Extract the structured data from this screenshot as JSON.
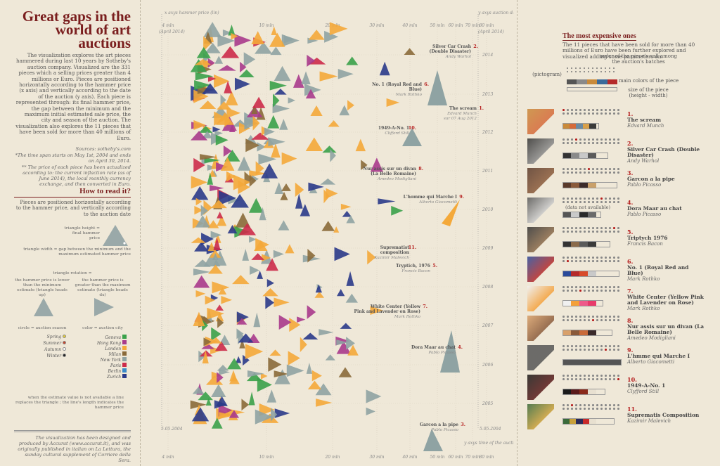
{
  "left": {
    "title": "Great gaps in the world of art auctions",
    "intro": "The visualization explores the art pieces hammered during last 10 years by Sotheby's auction company. Visualized are the 331 pieces which a selling prices greater than 4 millions or Euro. Pieces are positioned horizontally according to the hammer price (x axis) and vertically according to the date of the auction (y axis). Each piece is represented through: its final hammer price, the gap between the minimum and the maximum initial estimated sale price, the city and season of the auction. The visualization also explores the 11 pieces that have been sold for more than 40 millions of Euro.",
    "sources": "Sources: sotheby's.com",
    "note1": "*The time span starts on May 1st, 2004 and ends on April 30, 2014.",
    "note2": "** The price of each piece has been actualized according to: the current inflaction rate (as of June 2014), the local monthly currency exchange, and then converted in Euro.",
    "howto_title": "How to read it?",
    "howto_text": "Pieces are positioned horizontally according to the hammer price, and vertically according to the auction date",
    "triangle_height": "triangle height = final hammer price",
    "triangle_width": "triangle width = gap between the minimum and the maximum estimated hammer price",
    "triangle_rotation": "triangle rotation =",
    "rot_lower": "the hammer price is lower than the minimum estimate (triangle heads up)",
    "rot_greater": "the hammer price is greater than the maximum estimate (triangle heads dx)",
    "circle_label": "circle = auction season",
    "color_label": "color = auction city",
    "seasons": [
      {
        "name": "Spring",
        "color": "#e8cf3a"
      },
      {
        "name": "Summer",
        "color": "#c9462c"
      },
      {
        "name": "Autumn",
        "color": "#ffffff"
      },
      {
        "name": "Winter",
        "color": "#222222"
      }
    ],
    "cities": [
      {
        "name": "Geneva",
        "color": "#3aa14a"
      },
      {
        "name": "Hong Kong",
        "color": "#a83a8c"
      },
      {
        "name": "London",
        "color": "#f4a93a"
      },
      {
        "name": "Milan",
        "color": "#8a6a3a"
      },
      {
        "name": "New York",
        "color": "#8fa3a3"
      },
      {
        "name": "Paris",
        "color": "#cc2b4a"
      },
      {
        "name": "Berlin",
        "color": "#3a8ac9"
      },
      {
        "name": "Zurich",
        "color": "#2a3a8a"
      }
    ],
    "missing_note": "when the estimate value is not available a line replaces the triangle ; the line's length indicates the hammer price",
    "credits": "The visualization has been designed and produced by Accurat (www.accurat.it), and was originally published in italian on La Lettura, the sunday cultural supplement of Corriere della Sera."
  },
  "chart": {
    "x_axis_label": "x axys hammer price (lin)",
    "y_axis_label": "y axys auction date",
    "start": "(April 2014)",
    "end_label": "(April 2014)",
    "bottom_start": "5.05.2004",
    "bottom_end": "5.05.2004",
    "y_bottom_label": "y axys time of the auction",
    "ticks": [
      "4 mln",
      "10 mln",
      "20 mln",
      "30 mln",
      "40 mln",
      "50 mln",
      "60 mln",
      "70 mln",
      "80 mln"
    ],
    "years": [
      "2014",
      "2013",
      "2012",
      "2011",
      "2010",
      "2009",
      "2008",
      "2007",
      "2006",
      "2005"
    ],
    "annotations": [
      {
        "rank": "2.",
        "name": "Silver Car Crash (Double Disaster)",
        "author": "Andy Warhol"
      },
      {
        "rank": "6.",
        "name": "No. 1 (Royal Red and Blue)",
        "author": "Mark Rothko"
      },
      {
        "rank": "1.",
        "name": "The scream",
        "author": "Edvard Munch",
        "date": "sur 07 Aug 2012"
      },
      {
        "rank": "10.",
        "name": "1949-A-No. 1",
        "author": "Clifford Still"
      },
      {
        "rank": "8.",
        "name": "Nur assis sur un divan (La Belle Romaine)",
        "author": "Amedeo Modigliani"
      },
      {
        "rank": "9.",
        "name": "L'homme qui Marche I",
        "author": "Alberto Giacometti"
      },
      {
        "rank": "11.",
        "name": "Suprematist composition",
        "author": "Kazimir Malevich"
      },
      {
        "rank": "5.",
        "name": "Tryptich, 1976",
        "author": "Francis Bacon"
      },
      {
        "rank": "7.",
        "name": "White Center (Yellow Pink and Lavender on Rose)",
        "author": "Mark Rothko"
      },
      {
        "rank": "4.",
        "name": "Dora Maar au chat",
        "author": "Pablo Picasso"
      },
      {
        "rank": "3.",
        "name": "Garcon a la pipe",
        "author": "Pablo Picasso"
      }
    ]
  },
  "right": {
    "title": "The most expensive ones",
    "intro": "The 11 pieces that have been sold for more than 40 millions of Euro have been further explored and visualized adding some parameters on:",
    "key_order": "order of the piece's call among the auction's batches",
    "key_pictogram": "(pictogram)",
    "key_colors": "main colors of the piece",
    "key_size": "size of the piece (height - width)",
    "not_available": "(data not available)",
    "items": [
      {
        "rank": "1.",
        "name": "The scream",
        "author": "Edvard Munch",
        "colors": [
          "#c98a3a",
          "#d66a3a",
          "#6a8aa3",
          "#d8a04a",
          "#3a3a3a"
        ]
      },
      {
        "rank": "2.",
        "name": "Silver Car Crash (Double Disaster)",
        "author": "Andy Warhol",
        "colors": [
          "#333333",
          "#8a8a8a",
          "#c9c9c9",
          "#5a5a5a"
        ]
      },
      {
        "rank": "3.",
        "name": "Garcon a la pipe",
        "author": "Pablo Picasso",
        "colors": [
          "#5a3a2a",
          "#8a5a3a",
          "#3a2a2a",
          "#c9a06a"
        ]
      },
      {
        "rank": "4.",
        "name": "Dora Maar au chat",
        "author": "Pablo Picasso",
        "colors": [
          "#555555",
          "#c9c9c9",
          "#2a2a2a",
          "#6a6a6a"
        ]
      },
      {
        "rank": "5.",
        "name": "Triptych 1976",
        "author": "Francis Bacon",
        "colors": [
          "#333333",
          "#8a6a4a",
          "#5a5a5a",
          "#3a3a3a"
        ]
      },
      {
        "rank": "6.",
        "name": "No. 1 (Royal Red and Blue)",
        "author": "Mark Rothko",
        "colors": [
          "#2a4a9a",
          "#b52a2a",
          "#d84a2a",
          "#c9c9c9"
        ]
      },
      {
        "rank": "7.",
        "name": "White Center (Yellow Pink and Lavender on Rose)",
        "author": "Mark Rothko",
        "colors": [
          "#f0f0f0",
          "#f4a03a",
          "#ee5a8a",
          "#e83a6a"
        ]
      },
      {
        "rank": "8.",
        "name": "Nur assis sur un divan (La Belle Romaine)",
        "author": "Amedeo Modigliani",
        "colors": [
          "#d8a06a",
          "#8a5a3a",
          "#c96a3a",
          "#3a2a2a"
        ]
      },
      {
        "rank": "9.",
        "name": "L'hmme qui Marche I",
        "author": "Alberto Giacometti",
        "colors": [
          "#555555",
          "#555555"
        ]
      },
      {
        "rank": "10.",
        "name": "1949-A-No. 1",
        "author": "Clyfford Still",
        "colors": [
          "#1a1a1a",
          "#5a1a1a",
          "#8a2a1a",
          "#e8e0d0"
        ]
      },
      {
        "rank": "11.",
        "name": "Suprematis Composition",
        "author": "Kazimir Malevich",
        "colors": [
          "#3a6a3a",
          "#c9a03a",
          "#2a2a5a",
          "#c92a2a",
          "#e8e0d0"
        ]
      }
    ]
  }
}
